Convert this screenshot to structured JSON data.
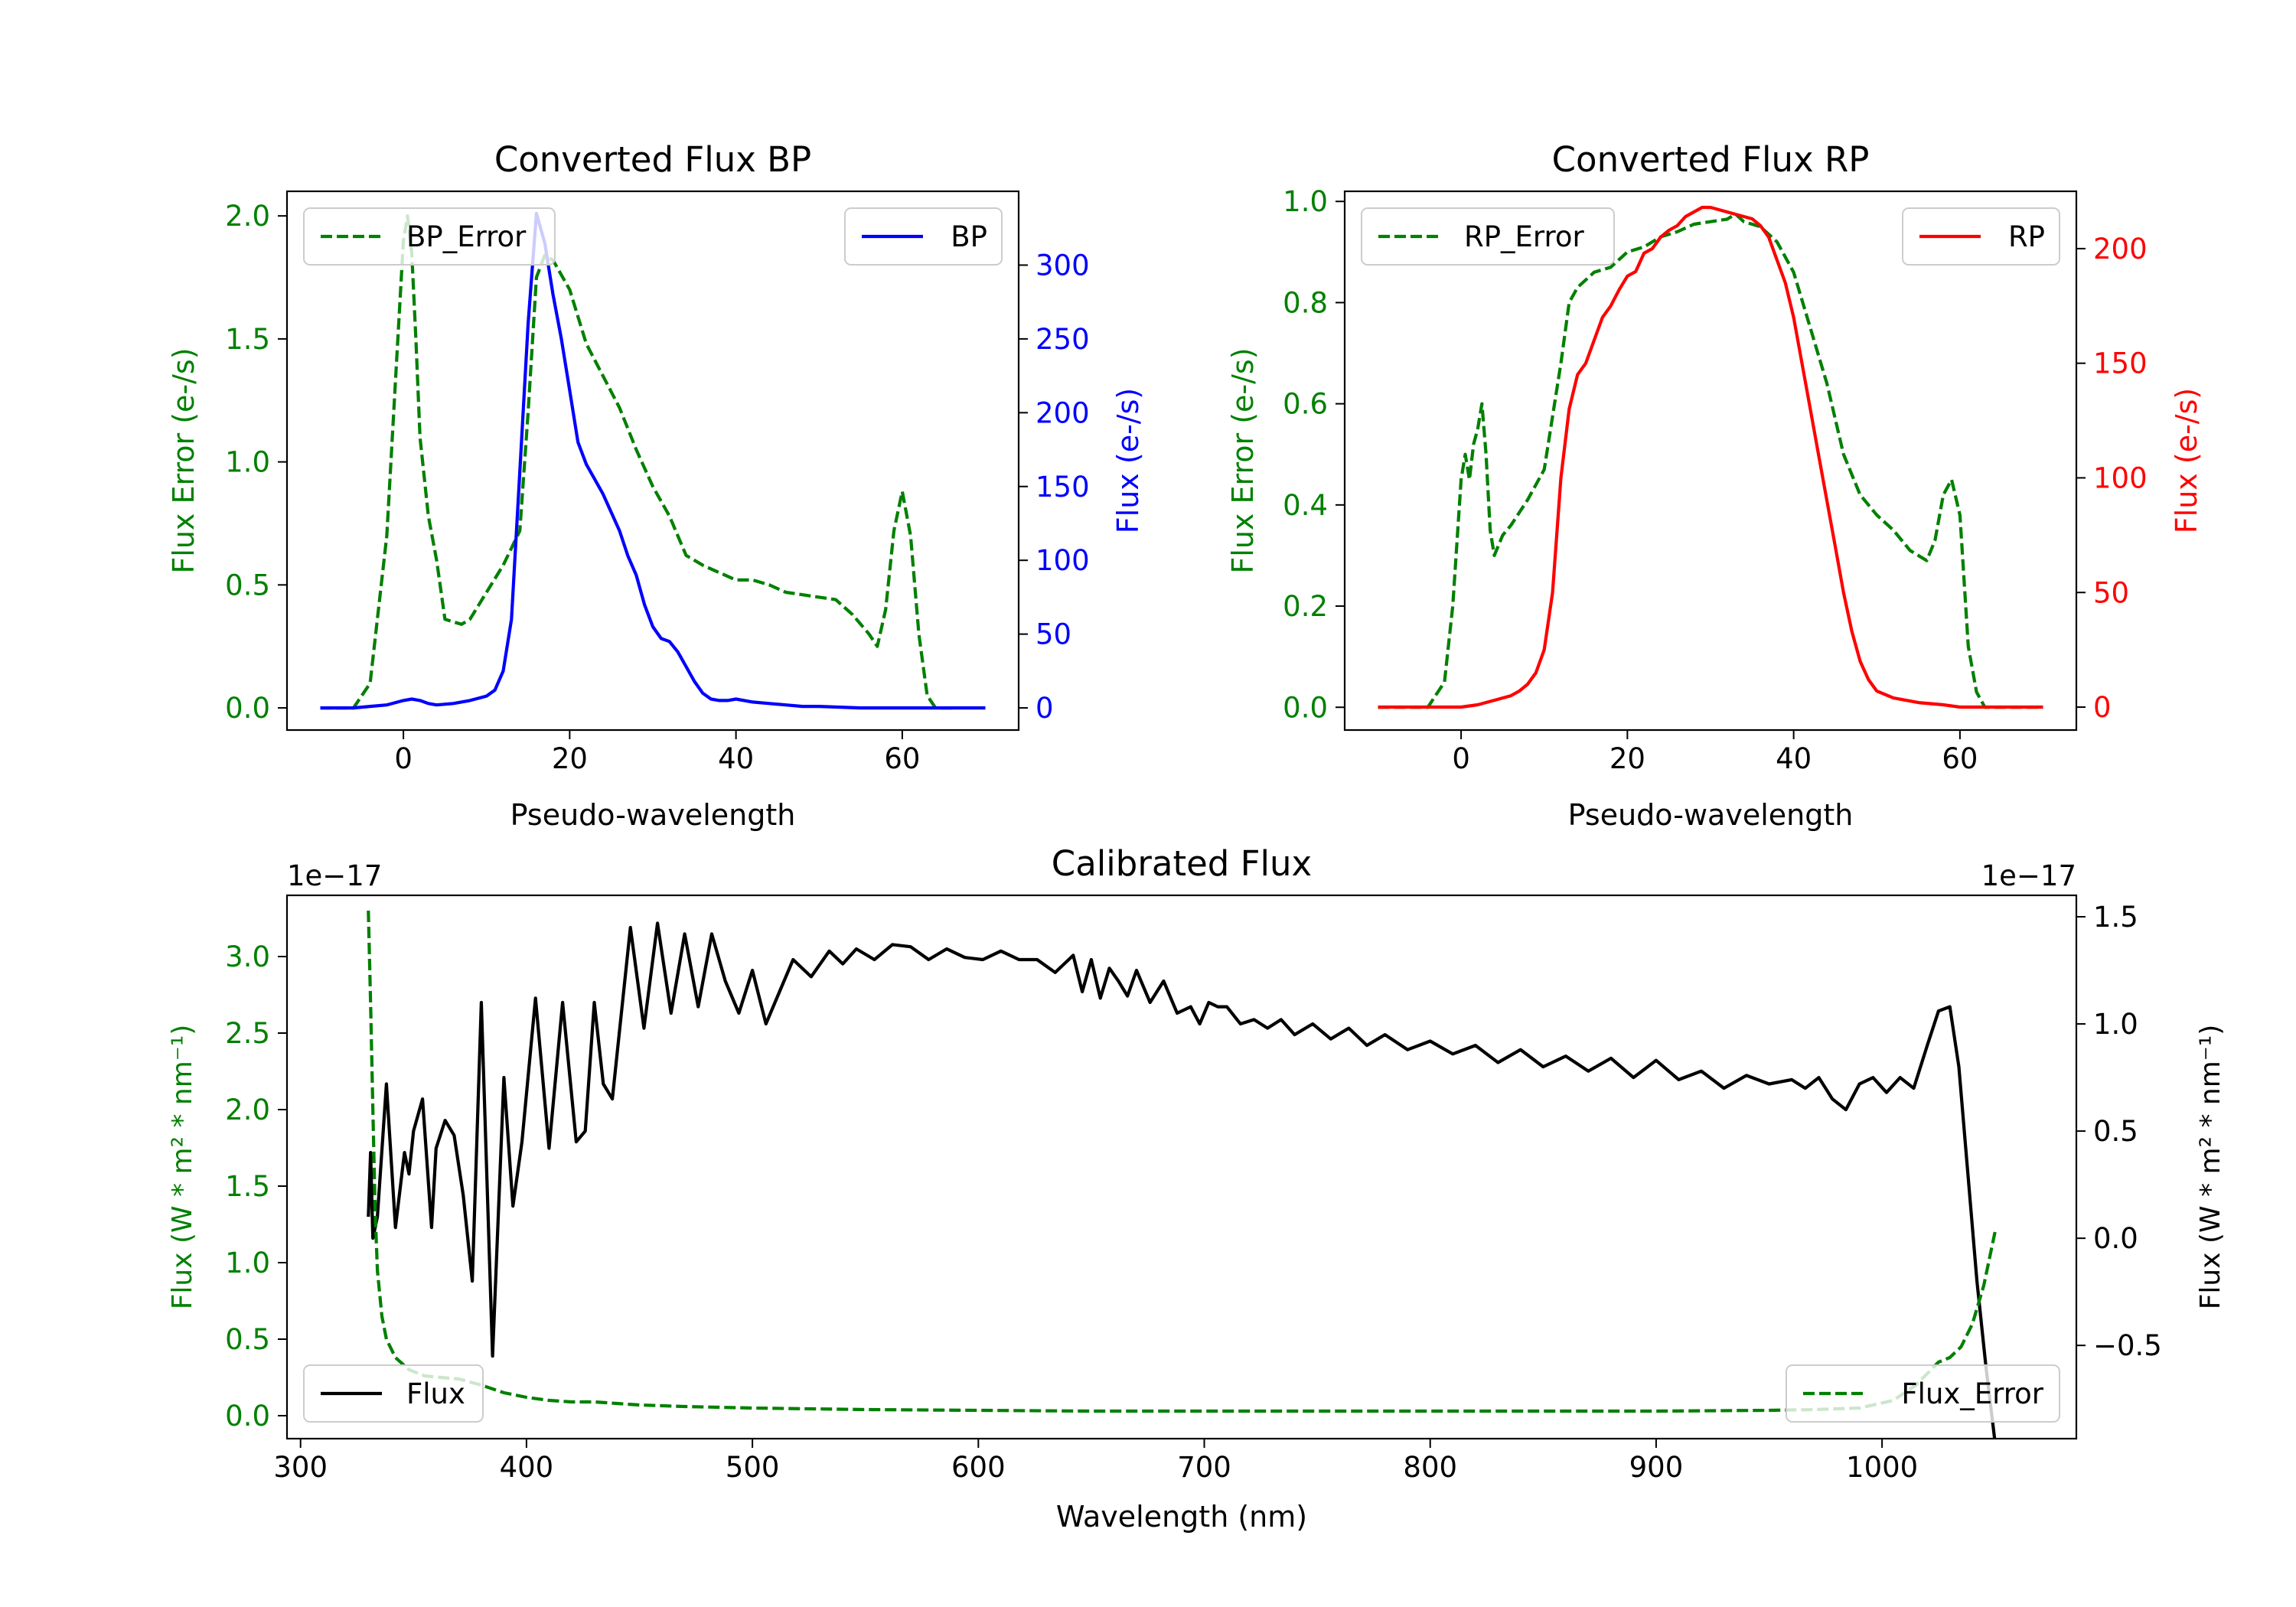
{
  "chart_data": [
    {
      "id": "bp",
      "type": "line",
      "title": "Converted Flux BP",
      "xlabel": "Pseudo-wavelength",
      "ylabel_left": "Flux Error (e-/s)",
      "ylabel_right": "Flux (e-/s)",
      "xlim": [
        -14,
        74
      ],
      "ylim_left": [
        -0.09,
        2.1
      ],
      "ylim_right": [
        -15,
        350
      ],
      "xticks": [
        0,
        20,
        40,
        60
      ],
      "yticks_left": [
        0.0,
        0.5,
        1.0,
        1.5,
        2.0
      ],
      "yticks_right": [
        0,
        50,
        100,
        150,
        200,
        250,
        300
      ],
      "left_color": "#008000",
      "right_color": "#0000ff",
      "series": [
        {
          "name": "BP_Error",
          "axis": "left",
          "style": "dashed",
          "color": "#008000",
          "x": [
            -10,
            -6,
            -4,
            -2,
            -1,
            0,
            0.5,
            1,
            1.5,
            2,
            3,
            4,
            5,
            6,
            7,
            8,
            10,
            12,
            14,
            15,
            16,
            17,
            18,
            20,
            22,
            24,
            26,
            28,
            30,
            32,
            34,
            36,
            38,
            40,
            42,
            44,
            46,
            48,
            50,
            52,
            54,
            56,
            57,
            58,
            59,
            60,
            61,
            62,
            63,
            64,
            65,
            66
          ],
          "values": [
            0.0,
            0.0,
            0.1,
            0.7,
            1.3,
            1.9,
            2.0,
            1.85,
            1.5,
            1.1,
            0.78,
            0.6,
            0.36,
            0.35,
            0.34,
            0.36,
            0.47,
            0.58,
            0.72,
            1.2,
            1.75,
            1.84,
            1.82,
            1.7,
            1.48,
            1.35,
            1.22,
            1.05,
            0.9,
            0.78,
            0.62,
            0.58,
            0.55,
            0.52,
            0.52,
            0.5,
            0.47,
            0.46,
            0.45,
            0.44,
            0.38,
            0.3,
            0.25,
            0.4,
            0.72,
            0.88,
            0.7,
            0.3,
            0.05,
            0.0,
            0.0,
            0.0
          ]
        },
        {
          "name": "BP",
          "axis": "right",
          "style": "solid",
          "color": "#0000ff",
          "x": [
            -10,
            -6,
            -4,
            -2,
            0,
            1,
            2,
            3,
            4,
            6,
            8,
            10,
            11,
            12,
            13,
            14,
            15,
            16,
            17,
            18,
            19,
            20,
            21,
            22,
            23,
            24,
            26,
            27,
            28,
            29,
            30,
            31,
            32,
            33,
            34,
            35,
            36,
            37,
            38,
            39,
            40,
            42,
            44,
            46,
            48,
            50,
            55,
            60,
            65,
            70
          ],
          "values": [
            0,
            0,
            1,
            2,
            5,
            6,
            5,
            3,
            2,
            3,
            5,
            8,
            12,
            25,
            60,
            160,
            260,
            335,
            315,
            280,
            250,
            215,
            180,
            165,
            155,
            145,
            120,
            103,
            90,
            70,
            55,
            47,
            45,
            38,
            28,
            18,
            10,
            6,
            5,
            5,
            6,
            4,
            3,
            2,
            1,
            1,
            0,
            0,
            0,
            0
          ]
        }
      ],
      "legend": [
        {
          "label": "BP_Error",
          "position": "upper-left"
        },
        {
          "label": "BP",
          "position": "upper-right"
        }
      ]
    },
    {
      "id": "rp",
      "type": "line",
      "title": "Converted Flux RP",
      "xlabel": "Pseudo-wavelength",
      "ylabel_left": "Flux Error (e-/s)",
      "ylabel_right": "Flux (e-/s)",
      "xlim": [
        -14,
        74
      ],
      "ylim_left": [
        -0.045,
        1.02
      ],
      "ylim_right": [
        -10,
        225
      ],
      "xticks": [
        0,
        20,
        40,
        60
      ],
      "yticks_left": [
        0.0,
        0.2,
        0.4,
        0.6,
        0.8,
        1.0
      ],
      "yticks_right": [
        0,
        50,
        100,
        150,
        200
      ],
      "left_color": "#008000",
      "right_color": "#ff0000",
      "series": [
        {
          "name": "RP_Error",
          "axis": "left",
          "style": "dashed",
          "color": "#008000",
          "x": [
            -10,
            -4,
            -2,
            -1,
            0,
            0.5,
            1,
            1.5,
            2,
            2.5,
            3,
            3.5,
            4,
            5,
            6,
            8,
            10,
            12,
            13,
            14,
            16,
            18,
            20,
            22,
            24,
            26,
            28,
            30,
            32,
            33,
            34,
            36,
            38,
            40,
            42,
            44,
            46,
            48,
            50,
            52,
            54,
            56,
            57,
            58,
            59,
            60,
            61,
            62,
            63,
            64,
            66,
            70
          ],
          "values": [
            0.0,
            0.0,
            0.05,
            0.2,
            0.45,
            0.5,
            0.45,
            0.52,
            0.55,
            0.6,
            0.5,
            0.35,
            0.3,
            0.34,
            0.36,
            0.41,
            0.47,
            0.68,
            0.8,
            0.83,
            0.86,
            0.87,
            0.9,
            0.91,
            0.93,
            0.94,
            0.955,
            0.96,
            0.965,
            0.975,
            0.96,
            0.95,
            0.92,
            0.86,
            0.75,
            0.64,
            0.5,
            0.42,
            0.38,
            0.35,
            0.31,
            0.29,
            0.33,
            0.42,
            0.45,
            0.38,
            0.12,
            0.03,
            0.0,
            0.0,
            0.0,
            0.0
          ]
        },
        {
          "name": "RP",
          "axis": "right",
          "style": "solid",
          "color": "#ff0000",
          "x": [
            -10,
            -4,
            0,
            2,
            4,
            6,
            7,
            8,
            9,
            10,
            11,
            12,
            13,
            14,
            15,
            16,
            17,
            18,
            19,
            20,
            21,
            22,
            23,
            24,
            25,
            26,
            27,
            28,
            29,
            30,
            31,
            32,
            33,
            34,
            35,
            36,
            37,
            38,
            39,
            40,
            41,
            42,
            43,
            44,
            45,
            46,
            47,
            48,
            49,
            50,
            52,
            55,
            58,
            60,
            65,
            70
          ],
          "values": [
            0,
            0,
            0,
            1,
            3,
            5,
            7,
            10,
            15,
            25,
            50,
            100,
            130,
            145,
            150,
            160,
            170,
            175,
            182,
            188,
            190,
            198,
            200,
            205,
            208,
            210,
            214,
            216,
            218,
            218,
            217,
            216,
            215,
            214,
            213,
            210,
            205,
            195,
            185,
            170,
            150,
            130,
            110,
            90,
            70,
            50,
            33,
            20,
            12,
            7,
            4,
            2,
            1,
            0,
            0,
            0
          ]
        }
      ],
      "legend": [
        {
          "label": "RP_Error",
          "position": "upper-left"
        },
        {
          "label": "RP",
          "position": "upper-right"
        }
      ]
    },
    {
      "id": "cal",
      "type": "line",
      "title": "Calibrated Flux",
      "xlabel": "Wavelength (nm)",
      "ylabel_left": "Flux (W * m² * nm⁻¹)",
      "ylabel_right": "Flux (W * m² * nm⁻¹)",
      "offset_left": "1e−17",
      "offset_right": "1e−17",
      "xlim": [
        294,
        1086
      ],
      "ylim_left": [
        -0.15,
        3.4
      ],
      "ylim_right": [
        -0.935,
        1.6
      ],
      "xticks": [
        300,
        400,
        500,
        600,
        700,
        800,
        900,
        1000
      ],
      "yticks_left": [
        0.0,
        0.5,
        1.0,
        1.5,
        2.0,
        2.5,
        3.0
      ],
      "yticks_right": [
        -0.5,
        0.0,
        0.5,
        1.0,
        1.5
      ],
      "left_color": "#008000",
      "right_color": "#000000",
      "series": [
        {
          "name": "Flux",
          "axis": "right",
          "style": "solid",
          "color": "#000000",
          "x": [
            330,
            331,
            332,
            334,
            338,
            342,
            346,
            348,
            350,
            354,
            358,
            360,
            364,
            368,
            372,
            376,
            380,
            385,
            390,
            394,
            398,
            404,
            410,
            416,
            422,
            426,
            430,
            434,
            438,
            446,
            452,
            458,
            464,
            470,
            476,
            482,
            488,
            494,
            500,
            506,
            512,
            518,
            526,
            534,
            540,
            546,
            554,
            562,
            570,
            578,
            586,
            594,
            602,
            610,
            618,
            626,
            634,
            642,
            646,
            650,
            654,
            658,
            662,
            666,
            670,
            676,
            682,
            688,
            694,
            698,
            702,
            706,
            710,
            716,
            722,
            728,
            734,
            740,
            748,
            756,
            764,
            772,
            780,
            790,
            800,
            810,
            820,
            830,
            840,
            850,
            860,
            870,
            880,
            890,
            900,
            910,
            920,
            930,
            940,
            950,
            960,
            966,
            972,
            978,
            984,
            990,
            996,
            1002,
            1008,
            1014,
            1020,
            1025,
            1030,
            1034,
            1038,
            1042,
            1046,
            1050
          ],
          "values": [
            0.1,
            0.4,
            0.0,
            0.1,
            0.72,
            0.05,
            0.4,
            0.3,
            0.5,
            0.65,
            0.05,
            0.42,
            0.55,
            0.48,
            0.2,
            -0.2,
            1.1,
            -0.55,
            0.75,
            0.15,
            0.45,
            1.12,
            0.42,
            1.1,
            0.45,
            0.5,
            1.1,
            0.72,
            0.65,
            1.45,
            0.98,
            1.47,
            1.05,
            1.42,
            1.08,
            1.42,
            1.2,
            1.05,
            1.25,
            1.0,
            1.15,
            1.3,
            1.22,
            1.34,
            1.28,
            1.35,
            1.3,
            1.37,
            1.36,
            1.3,
            1.35,
            1.31,
            1.3,
            1.34,
            1.3,
            1.3,
            1.24,
            1.32,
            1.15,
            1.3,
            1.12,
            1.26,
            1.2,
            1.13,
            1.25,
            1.1,
            1.2,
            1.05,
            1.08,
            1.0,
            1.1,
            1.08,
            1.08,
            1.0,
            1.02,
            0.98,
            1.02,
            0.95,
            1.0,
            0.93,
            0.98,
            0.9,
            0.95,
            0.88,
            0.92,
            0.86,
            0.9,
            0.82,
            0.88,
            0.8,
            0.85,
            0.78,
            0.84,
            0.75,
            0.83,
            0.74,
            0.78,
            0.7,
            0.76,
            0.72,
            0.74,
            0.7,
            0.75,
            0.65,
            0.6,
            0.72,
            0.75,
            0.68,
            0.75,
            0.7,
            0.9,
            1.06,
            1.08,
            0.8,
            0.3,
            -0.2,
            -0.6,
            -0.95
          ]
        },
        {
          "name": "Flux_Error",
          "axis": "left",
          "style": "dashed",
          "color": "#008000",
          "x": [
            330,
            331,
            332,
            333,
            334,
            336,
            338,
            342,
            348,
            355,
            362,
            370,
            380,
            390,
            400,
            410,
            420,
            430,
            440,
            450,
            470,
            500,
            550,
            600,
            650,
            700,
            750,
            800,
            850,
            900,
            950,
            970,
            990,
            1005,
            1015,
            1025,
            1030,
            1035,
            1040,
            1045,
            1050
          ],
          "values": [
            3.3,
            2.7,
            2.0,
            1.35,
            0.95,
            0.65,
            0.5,
            0.38,
            0.3,
            0.26,
            0.25,
            0.24,
            0.2,
            0.15,
            0.12,
            0.1,
            0.09,
            0.09,
            0.08,
            0.07,
            0.06,
            0.05,
            0.04,
            0.035,
            0.03,
            0.03,
            0.03,
            0.03,
            0.03,
            0.03,
            0.035,
            0.04,
            0.05,
            0.1,
            0.2,
            0.35,
            0.38,
            0.45,
            0.6,
            0.85,
            1.2
          ]
        }
      ],
      "legend": [
        {
          "label": "Flux",
          "position": "lower-left"
        },
        {
          "label": "Flux_Error",
          "position": "lower-right"
        }
      ]
    }
  ]
}
